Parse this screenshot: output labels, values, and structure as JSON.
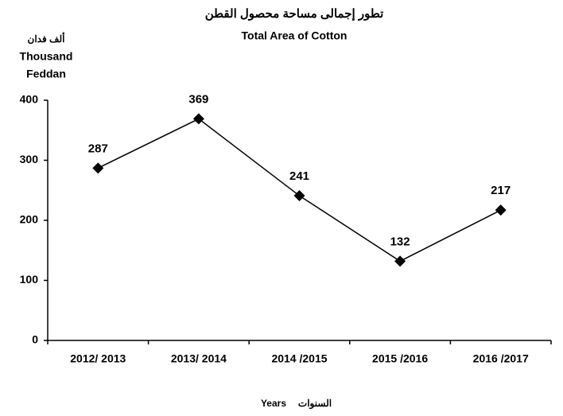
{
  "chart_data": {
    "type": "line",
    "title": "تطور إجمالى مساحة محصول القطن",
    "subtitle": "Total Area of Cotton",
    "y_axis_label": [
      "ألف فدان",
      "Thousand",
      "Feddan"
    ],
    "x_axis_label": [
      "Years",
      "السنوات"
    ],
    "categories": [
      "2012/ 2013",
      "2013/ 2014",
      "2014 /2015",
      "2015 /2016",
      "2016 /2017"
    ],
    "values": [
      287,
      369,
      241,
      132,
      217
    ],
    "color": "#000000",
    "ylim": [
      0,
      400
    ],
    "yticks": [
      0,
      100,
      200,
      300,
      400
    ],
    "grid": false
  }
}
